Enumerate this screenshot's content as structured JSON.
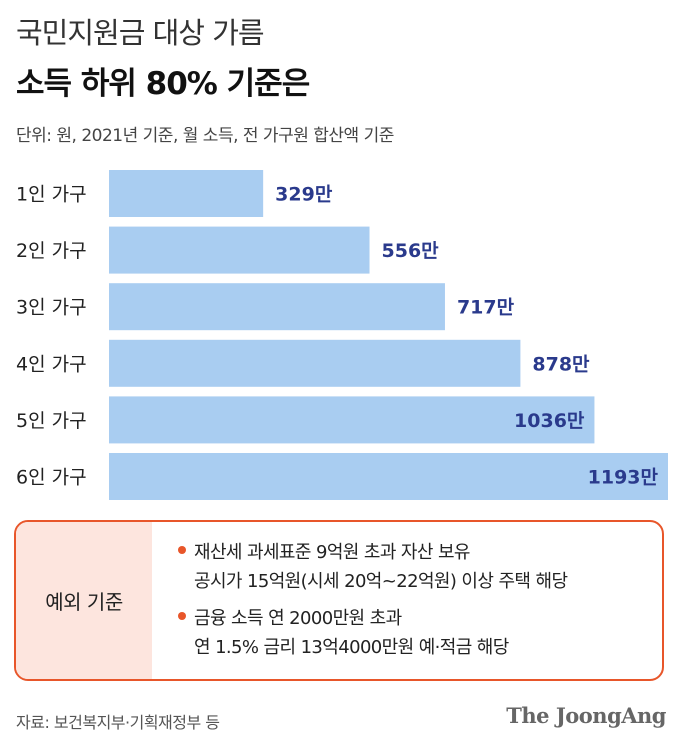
{
  "title_line1": "국민지원금 대상 가름",
  "title_line2": "소득 하위 80% 기준은",
  "unit_note": "단위: 원, 2021년 기준, 월 소득, 전 가구원 합산액 기준",
  "chart_data": {
    "type": "bar",
    "orientation": "horizontal",
    "categories": [
      "1인 가구",
      "2인 가구",
      "3인 가구",
      "4인 가구",
      "5인 가구",
      "6인 가구"
    ],
    "values": [
      329,
      556,
      717,
      878,
      1036,
      1193
    ],
    "value_labels": [
      "329만",
      "556만",
      "717만",
      "878만",
      "1036만",
      "1193만"
    ],
    "unit": "만원",
    "colors": {
      "bar": "#a9cdf1",
      "value_text": "#2a3a8c"
    }
  },
  "exceptions": {
    "label": "예외 기준",
    "items": [
      {
        "lines": [
          "재산세 과세표준 9억원 초과 자산 보유",
          "공시가 15억원(시세 20억~22억원) 이상 주택 해당"
        ]
      },
      {
        "lines": [
          "금융 소득 연 2000만원 초과",
          "연 1.5% 금리 13억4000만원 예·적금 해당"
        ]
      }
    ],
    "colors": {
      "border": "#e8562a",
      "label_bg": "#fde5de",
      "bullet": "#e8562a"
    }
  },
  "source": "자료: 보건복지부·기획재정부 등",
  "brand": "The JoongAng"
}
